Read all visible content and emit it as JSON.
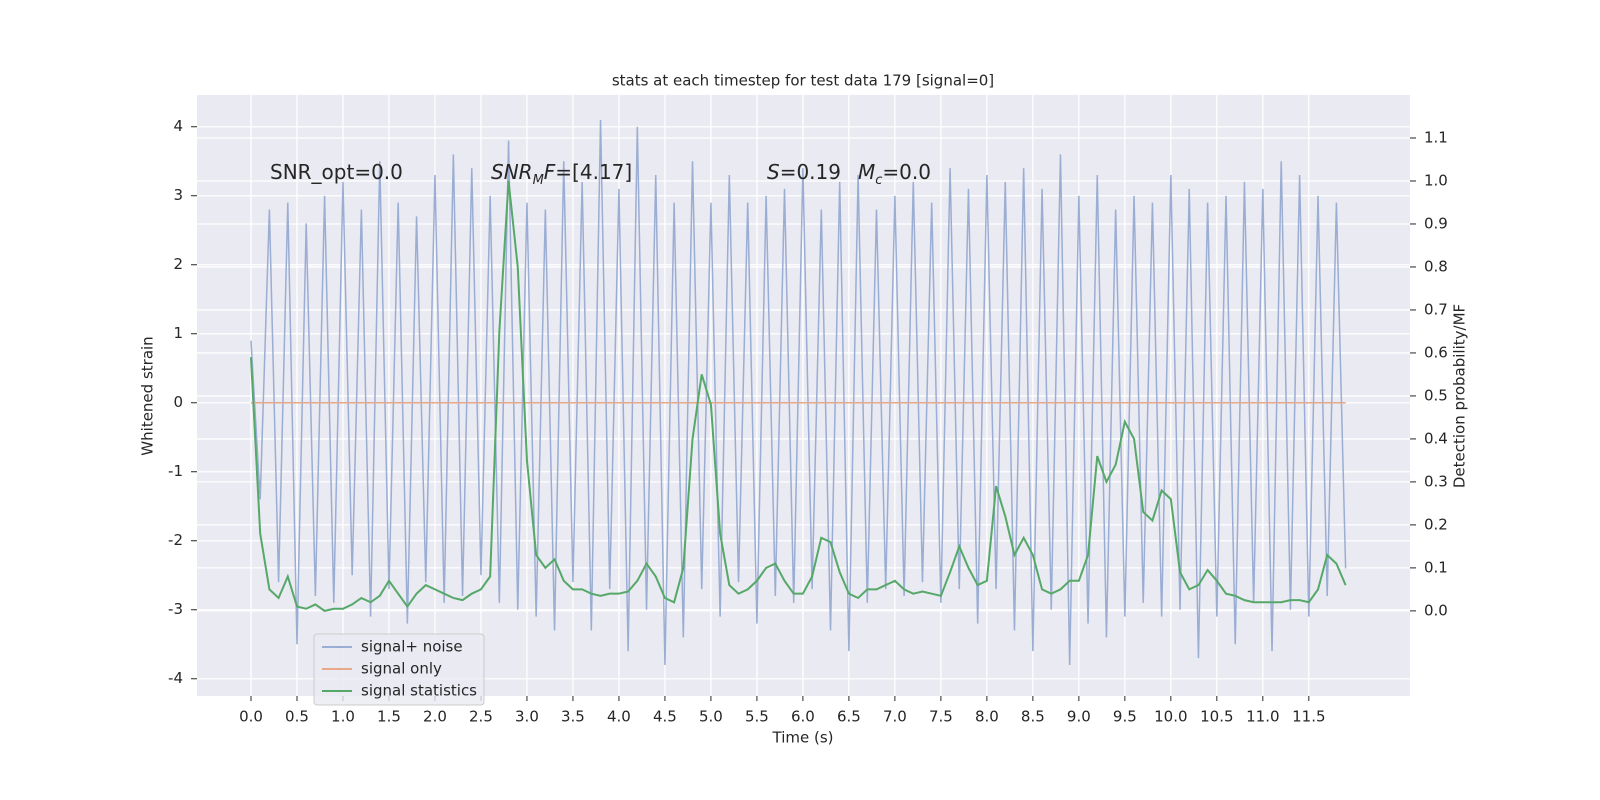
{
  "chart_data": {
    "type": "line",
    "title": "stats at each timestep for test data 179 [signal=0]",
    "xlabel": "Time (s)",
    "ylabel": "Whitened strain",
    "y2label": "Detection probability/MF",
    "annotations": [
      [
        "SNR_opt=0.0"
      ],
      [
        "SNR",
        "M",
        "F=[4.17]"
      ],
      [
        "S",
        "=0.19"
      ],
      [
        "M",
        "c",
        "=0.0"
      ]
    ],
    "x": [
      0,
      0.1,
      0.2,
      0.3,
      0.4,
      0.5,
      0.6,
      0.7,
      0.8,
      0.9,
      1,
      1.1,
      1.2,
      1.3,
      1.4,
      1.5,
      1.6,
      1.7,
      1.8,
      1.9,
      2,
      2.1,
      2.2,
      2.3,
      2.4,
      2.5,
      2.6,
      2.7,
      2.8,
      2.9,
      3,
      3.1,
      3.2,
      3.3,
      3.4,
      3.5,
      3.6,
      3.7,
      3.8,
      3.9,
      4,
      4.1,
      4.2,
      4.3,
      4.4,
      4.5,
      4.6,
      4.7,
      4.8,
      4.9,
      5,
      5.1,
      5.2,
      5.3,
      5.4,
      5.5,
      5.6,
      5.7,
      5.8,
      5.9,
      6,
      6.1,
      6.2,
      6.3,
      6.4,
      6.5,
      6.6,
      6.7,
      6.8,
      6.9,
      7,
      7.1,
      7.2,
      7.3,
      7.4,
      7.5,
      7.6,
      7.7,
      7.8,
      7.9,
      8,
      8.1,
      8.2,
      8.3,
      8.4,
      8.5,
      8.6,
      8.7,
      8.8,
      8.9,
      9,
      9.1,
      9.2,
      9.3,
      9.4,
      9.5,
      9.6,
      9.7,
      9.8,
      9.9,
      10,
      10.1,
      10.2,
      10.3,
      10.4,
      10.5,
      10.6,
      10.7,
      10.8,
      10.9,
      11,
      11.1,
      11.2,
      11.3,
      11.4,
      11.5,
      11.6,
      11.7,
      11.8,
      11.9
    ],
    "series": [
      {
        "name": "signal+ noise",
        "color": "#9aadd3",
        "values": [
          0.9,
          -1.4,
          2.8,
          -2.6,
          2.9,
          -3.5,
          2.6,
          -2.8,
          3.0,
          -2.9,
          3.2,
          -2.5,
          2.8,
          -3.1,
          3.5,
          -2.7,
          2.9,
          -3.2,
          2.7,
          -2.6,
          3.3,
          -2.9,
          3.6,
          -2.8,
          3.4,
          -2.5,
          3.0,
          -2.9,
          3.8,
          -3.0,
          2.9,
          -3.1,
          2.8,
          -3.3,
          3.5,
          -2.6,
          3.2,
          -3.3,
          4.1,
          -2.7,
          3.1,
          -3.6,
          4.0,
          -3.0,
          3.3,
          -3.8,
          2.9,
          -3.4,
          3.5,
          -2.7,
          2.9,
          -3.1,
          3.3,
          -2.6,
          2.9,
          -3.2,
          3.0,
          -2.8,
          3.1,
          -2.9,
          3.4,
          -2.7,
          2.8,
          -3.3,
          3.2,
          -3.6,
          3.3,
          -2.9,
          2.8,
          -2.7,
          3.0,
          -2.8,
          3.2,
          -2.6,
          2.9,
          -2.9,
          3.4,
          -2.7,
          3.1,
          -3.2,
          3.3,
          -2.7,
          3.2,
          -3.3,
          3.4,
          -3.6,
          3.1,
          -3.0,
          3.6,
          -3.8,
          3.0,
          -3.2,
          3.3,
          -3.4,
          2.8,
          -3.1,
          3.0,
          -2.9,
          2.9,
          -3.1,
          3.3,
          -3.0,
          3.1,
          -3.7,
          2.9,
          -3.1,
          3.0,
          -3.5,
          3.2,
          -2.9,
          3.1,
          -3.6,
          3.5,
          -3.0,
          3.3,
          -3.1,
          3.0,
          -2.8,
          2.9,
          -2.4
        ]
      },
      {
        "name": "signal only",
        "color": "#e8a98a",
        "values": [
          0,
          0,
          0,
          0,
          0,
          0,
          0,
          0,
          0,
          0,
          0,
          0,
          0,
          0,
          0,
          0,
          0,
          0,
          0,
          0,
          0,
          0,
          0,
          0,
          0,
          0,
          0,
          0,
          0,
          0,
          0,
          0,
          0,
          0,
          0,
          0,
          0,
          0,
          0,
          0,
          0,
          0,
          0,
          0,
          0,
          0,
          0,
          0,
          0,
          0,
          0,
          0,
          0,
          0,
          0,
          0,
          0,
          0,
          0,
          0,
          0,
          0,
          0,
          0,
          0,
          0,
          0,
          0,
          0,
          0,
          0,
          0,
          0,
          0,
          0,
          0,
          0,
          0,
          0,
          0,
          0,
          0,
          0,
          0,
          0,
          0,
          0,
          0,
          0,
          0,
          0,
          0,
          0,
          0,
          0,
          0,
          0,
          0,
          0,
          0,
          0,
          0,
          0,
          0,
          0,
          0,
          0,
          0,
          0,
          0,
          0,
          0,
          0,
          0,
          0,
          0,
          0,
          0,
          0,
          0
        ]
      },
      {
        "name": "signal statistics",
        "color": "#55a868",
        "axis": "y2",
        "values": [
          0.59,
          0.18,
          0.05,
          0.03,
          0.08,
          0.01,
          0.005,
          0.015,
          0.0,
          0.005,
          0.005,
          0.015,
          0.03,
          0.02,
          0.035,
          0.07,
          0.04,
          0.01,
          0.04,
          0.06,
          0.05,
          0.04,
          0.03,
          0.025,
          0.04,
          0.05,
          0.08,
          0.65,
          1.0,
          0.8,
          0.35,
          0.13,
          0.1,
          0.12,
          0.07,
          0.05,
          0.05,
          0.04,
          0.035,
          0.04,
          0.04,
          0.045,
          0.07,
          0.11,
          0.08,
          0.03,
          0.02,
          0.1,
          0.4,
          0.55,
          0.48,
          0.18,
          0.06,
          0.04,
          0.05,
          0.07,
          0.1,
          0.11,
          0.07,
          0.04,
          0.04,
          0.08,
          0.17,
          0.16,
          0.09,
          0.04,
          0.03,
          0.05,
          0.05,
          0.06,
          0.07,
          0.05,
          0.04,
          0.045,
          0.04,
          0.035,
          0.09,
          0.15,
          0.1,
          0.06,
          0.07,
          0.29,
          0.22,
          0.13,
          0.17,
          0.13,
          0.05,
          0.04,
          0.05,
          0.07,
          0.07,
          0.13,
          0.36,
          0.3,
          0.34,
          0.44,
          0.4,
          0.23,
          0.21,
          0.28,
          0.26,
          0.09,
          0.05,
          0.06,
          0.095,
          0.07,
          0.04,
          0.035,
          0.025,
          0.02,
          0.02,
          0.02,
          0.02,
          0.025,
          0.025,
          0.02,
          0.05,
          0.13,
          0.11,
          0.06
        ]
      }
    ],
    "xlim": [
      -0.587,
      12.6
    ],
    "ylim": [
      -4.25,
      4.46
    ],
    "y2lim": [
      -0.198,
      1.2
    ],
    "xticks": [
      {
        "value": 0,
        "label": "0.0"
      },
      0.5,
      {
        "value": 1,
        "label": "1.0"
      },
      1.5,
      {
        "value": 2,
        "label": "2.0"
      },
      2.5,
      {
        "value": 3,
        "label": "3.0"
      },
      3.5,
      {
        "value": 4,
        "label": "4.0"
      },
      4.5,
      {
        "value": 5,
        "label": "5.0"
      },
      5.5,
      {
        "value": 6,
        "label": "6.0"
      },
      6.5,
      {
        "value": 7,
        "label": "7.0"
      },
      7.5,
      {
        "value": 8,
        "label": "8.0"
      },
      8.5,
      {
        "value": 9,
        "label": "9.0"
      },
      9.5,
      {
        "value": 10,
        "label": "10.0"
      },
      10.5,
      {
        "value": 11,
        "label": "11.0"
      },
      11.5
    ],
    "yticks": [
      -4,
      -3,
      -2,
      -1,
      0,
      1,
      2,
      3,
      4
    ],
    "y2ticks": [
      {
        "value": 0,
        "label": "0.0"
      },
      0.1,
      0.2,
      0.3,
      0.4,
      0.5,
      0.6,
      0.7,
      0.8,
      0.9,
      {
        "value": 1,
        "label": "1.0"
      },
      1.1
    ],
    "grid": true,
    "legend": "lower left"
  }
}
